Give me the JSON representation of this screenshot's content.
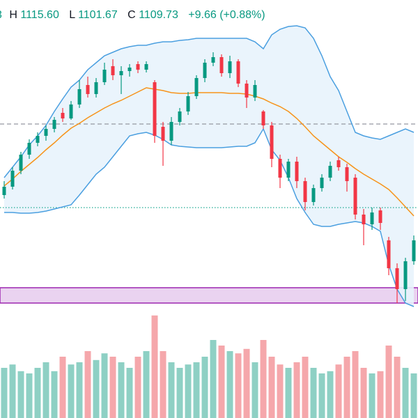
{
  "chart_data": {
    "type": "candlestick",
    "header": {
      "open_fragment": "3",
      "high_label": "H",
      "high": "1115.60",
      "low_label": "L",
      "low": "1101.67",
      "close_label": "C",
      "close": "1109.73",
      "change": "+9.66 (+0.88%)"
    },
    "open": [
      320,
      332,
      355,
      378,
      395,
      405,
      415,
      438,
      430,
      450,
      478,
      465,
      482,
      505,
      492,
      498,
      508,
      500,
      482,
      418,
      398,
      425,
      440,
      462,
      488,
      510,
      518,
      495,
      512,
      480,
      460,
      440,
      420,
      372,
      345,
      368,
      340,
      310,
      330,
      345,
      370,
      360,
      345,
      292,
      278,
      298,
      255,
      215,
      185,
      225
    ],
    "high": [
      340,
      360,
      382,
      400,
      410,
      420,
      432,
      445,
      455,
      485,
      490,
      488,
      510,
      515,
      505,
      508,
      512,
      512,
      485,
      425,
      432,
      445,
      468,
      492,
      515,
      525,
      522,
      520,
      515,
      485,
      485,
      442,
      425,
      378,
      372,
      375,
      345,
      335,
      350,
      368,
      375,
      365,
      350,
      300,
      302,
      302,
      260,
      222,
      230,
      262
    ],
    "low": [
      315,
      328,
      350,
      372,
      390,
      398,
      410,
      425,
      428,
      445,
      460,
      460,
      478,
      485,
      465,
      490,
      495,
      496,
      395,
      362,
      392,
      420,
      435,
      458,
      482,
      505,
      490,
      488,
      475,
      445,
      455,
      415,
      360,
      330,
      340,
      330,
      298,
      305,
      325,
      340,
      355,
      325,
      285,
      248,
      270,
      270,
      205,
      165,
      168,
      220
    ],
    "close": [
      332,
      355,
      378,
      395,
      405,
      415,
      428,
      430,
      450,
      472,
      465,
      482,
      500,
      492,
      498,
      503,
      500,
      508,
      405,
      398,
      425,
      440,
      462,
      488,
      510,
      518,
      495,
      512,
      480,
      460,
      478,
      420,
      372,
      345,
      368,
      340,
      310,
      330,
      345,
      362,
      360,
      340,
      292,
      278,
      295,
      280,
      215,
      185,
      225,
      255
    ],
    "ylim": [
      160,
      600
    ],
    "colors": {
      "up": "#089981",
      "down": "#f23645"
    },
    "bollinger": {
      "upper": [
        345,
        360,
        375,
        392,
        405,
        420,
        440,
        458,
        475,
        485,
        500,
        510,
        520,
        525,
        530,
        533,
        535,
        535,
        538,
        540,
        540,
        542,
        543,
        545,
        545,
        545,
        545,
        545,
        545,
        545,
        540,
        530,
        550,
        558,
        562,
        563,
        560,
        545,
        520,
        490,
        470,
        440,
        410,
        405,
        402,
        400,
        405,
        410,
        415,
        410
      ],
      "middle": [
        333,
        343,
        354,
        364,
        374,
        385,
        395,
        406,
        416,
        423,
        431,
        438,
        445,
        451,
        456,
        462,
        468,
        474,
        472,
        470,
        467,
        466,
        466,
        467,
        467,
        467,
        467,
        466,
        466,
        465,
        462,
        458,
        452,
        447,
        440,
        430,
        418,
        405,
        395,
        385,
        375,
        367,
        358,
        350,
        343,
        336,
        328,
        316,
        303,
        290
      ],
      "lower": [
        295,
        295,
        294,
        294,
        295,
        297,
        300,
        303,
        306,
        320,
        335,
        350,
        360,
        375,
        390,
        405,
        408,
        410,
        406,
        400,
        392,
        390,
        389,
        388,
        388,
        388,
        388,
        389,
        390,
        390,
        395,
        415,
        385,
        370,
        345,
        315,
        295,
        278,
        275,
        275,
        278,
        280,
        282,
        280,
        275,
        268,
        220,
        185,
        165,
        160
      ],
      "band_color": "#4a9fe0",
      "middle_color": "#f7931a",
      "fill": "#e8f3fc"
    },
    "volume": {
      "values": [
        45,
        48,
        42,
        40,
        45,
        50,
        42,
        55,
        48,
        50,
        60,
        52,
        58,
        55,
        50,
        45,
        55,
        60,
        92,
        60,
        50,
        45,
        48,
        50,
        55,
        70,
        65,
        60,
        58,
        62,
        50,
        70,
        55,
        48,
        45,
        50,
        55,
        45,
        40,
        42,
        48,
        55,
        60,
        45,
        40,
        42,
        65,
        55,
        45,
        40
      ],
      "ylim": [
        0,
        100
      ],
      "up_color": "#8ed0c4",
      "down_color": "#f5a7ab"
    },
    "reference_lines": [
      {
        "value": 422,
        "style": "dashed",
        "color": "#9598a1"
      },
      {
        "value": 302,
        "style": "dotted",
        "color": "#22ab94"
      }
    ],
    "zone": {
      "range": [
        165,
        187
      ],
      "color": "#9c27b0",
      "fill": "#ead3f0"
    }
  }
}
